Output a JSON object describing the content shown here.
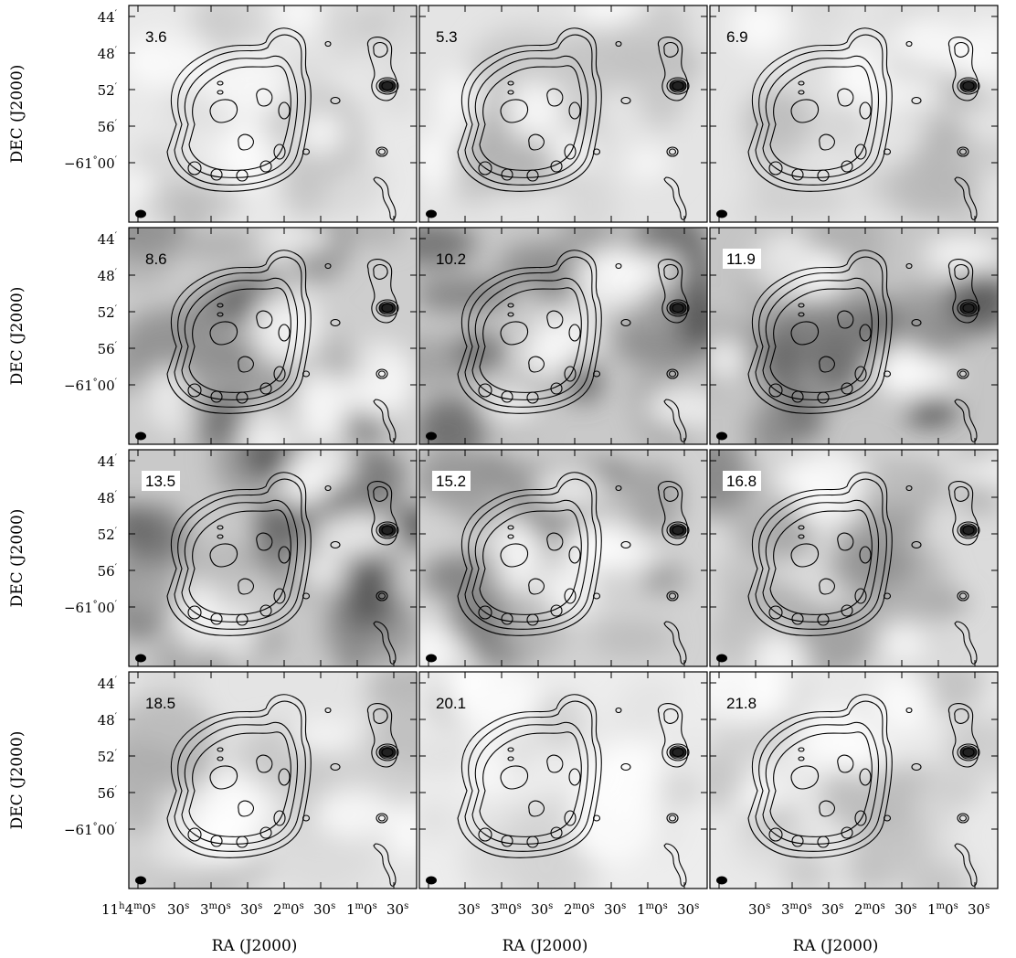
{
  "figure": {
    "y_axis_label": "DEC (J2000)",
    "x_axis_label": "RA (J2000)",
    "dec_ticks": [
      {
        "deg": "",
        "min": "44"
      },
      {
        "deg": "",
        "min": "48"
      },
      {
        "deg": "",
        "min": "52"
      },
      {
        "deg": "",
        "min": "56"
      },
      {
        "deg": "−61",
        "min": "00"
      }
    ],
    "ra_ticks_first": [
      {
        "h": "11",
        "m": "4",
        "s": "0"
      },
      {
        "s": "30"
      },
      {
        "m": "3",
        "s": "0"
      },
      {
        "s": "30"
      },
      {
        "m": "2",
        "s": "0"
      },
      {
        "s": "30"
      },
      {
        "m": "1",
        "s": "0"
      },
      {
        "s": "30"
      }
    ],
    "ra_ticks_other": [
      {
        "s": "30"
      },
      {
        "m": "3",
        "s": "0"
      },
      {
        "s": "30"
      },
      {
        "m": "2",
        "s": "0"
      },
      {
        "s": "30"
      },
      {
        "m": "1",
        "s": "0"
      },
      {
        "s": "30"
      }
    ],
    "panels": [
      {
        "velocity": "3.6",
        "boxed": false,
        "gray": 0.25
      },
      {
        "velocity": "5.3",
        "boxed": false,
        "gray": 0.3
      },
      {
        "velocity": "6.9",
        "boxed": false,
        "gray": 0.3
      },
      {
        "velocity": "8.6",
        "boxed": false,
        "gray": 0.55
      },
      {
        "velocity": "10.2",
        "boxed": false,
        "gray": 0.6
      },
      {
        "velocity": "11.9",
        "boxed": true,
        "gray": 0.65
      },
      {
        "velocity": "13.5",
        "boxed": true,
        "gray": 0.6
      },
      {
        "velocity": "15.2",
        "boxed": true,
        "gray": 0.5
      },
      {
        "velocity": "16.8",
        "boxed": true,
        "gray": 0.4
      },
      {
        "velocity": "18.5",
        "boxed": false,
        "gray": 0.3
      },
      {
        "velocity": "20.1",
        "boxed": false,
        "gray": 0.2
      },
      {
        "velocity": "21.8",
        "boxed": false,
        "gray": 0.25
      }
    ]
  }
}
